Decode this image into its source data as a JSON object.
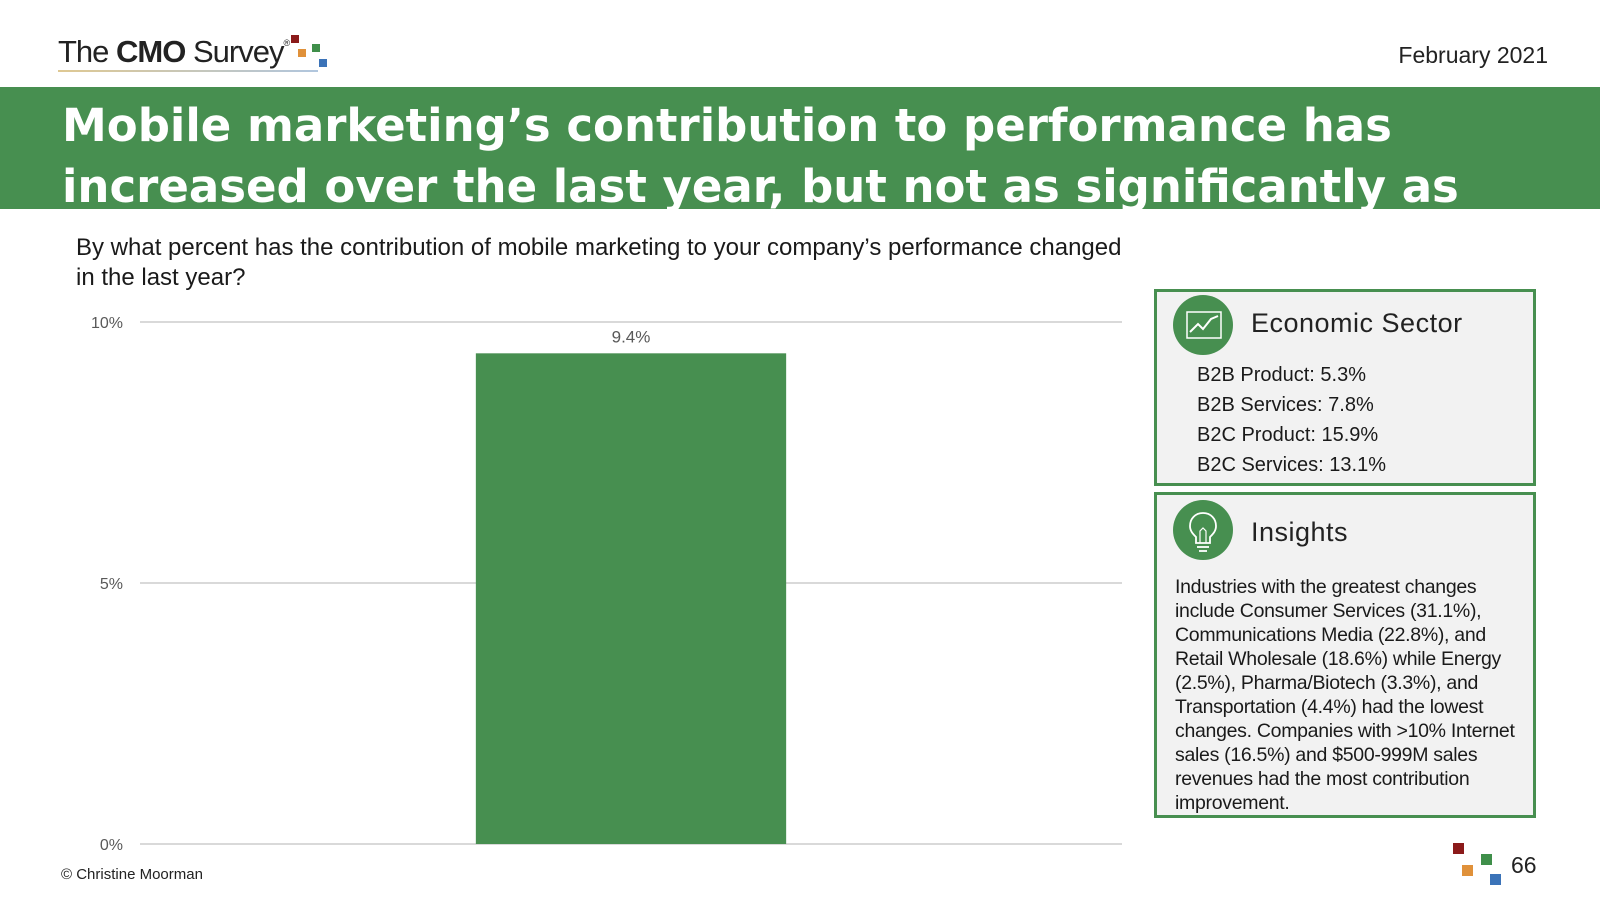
{
  "header": {
    "logo_prefix": "The ",
    "logo_bold": "CMO",
    "logo_suffix": " Survey",
    "logo_mark": "®",
    "date": "February 2021"
  },
  "banner": {
    "title": "Mobile marketing’s contribution to performance has increased over the last year, but not as significantly as digital or social"
  },
  "question": "By what percent has the contribution of mobile marketing to your company’s performance changed in the last year?",
  "chart_data": {
    "type": "bar",
    "categories": [
      ""
    ],
    "values": [
      9.4
    ],
    "value_labels": [
      "9.4%"
    ],
    "ylim": [
      0,
      10
    ],
    "yticks": [
      0,
      5,
      10
    ],
    "ytick_labels": [
      "0%",
      "5%",
      "10%"
    ],
    "grid": true,
    "bar_color": "#478f50"
  },
  "economic_sector": {
    "title": "Economic Sector",
    "icon": "line-chart-icon",
    "items": [
      "B2B Product: 5.3%",
      "B2B Services: 7.8%",
      "B2C Product: 15.9%",
      "B2C Services: 13.1%"
    ]
  },
  "insights": {
    "title": "Insights",
    "icon": "lightbulb-icon",
    "text": "Industries with the greatest changes include Consumer Services (31.1%), Communications Media (22.8%), and Retail Wholesale (18.6%) while Energy (2.5%), Pharma/Biotech (3.3%), and Transportation (4.4%) had the lowest changes. Companies with >10% Internet sales (16.5%) and $500-999M sales revenues had the most contribution improvement."
  },
  "footer": {
    "copyright": "© Christine Moorman",
    "page_number": "66"
  },
  "colors": {
    "brand_green": "#478f50",
    "panel_bg": "#f2f2f2",
    "grid": "#d9d9d9",
    "square_red": "#8b1a1a",
    "square_orange": "#e0913a",
    "square_green": "#3f8f4a",
    "square_blue": "#3b73b8"
  }
}
